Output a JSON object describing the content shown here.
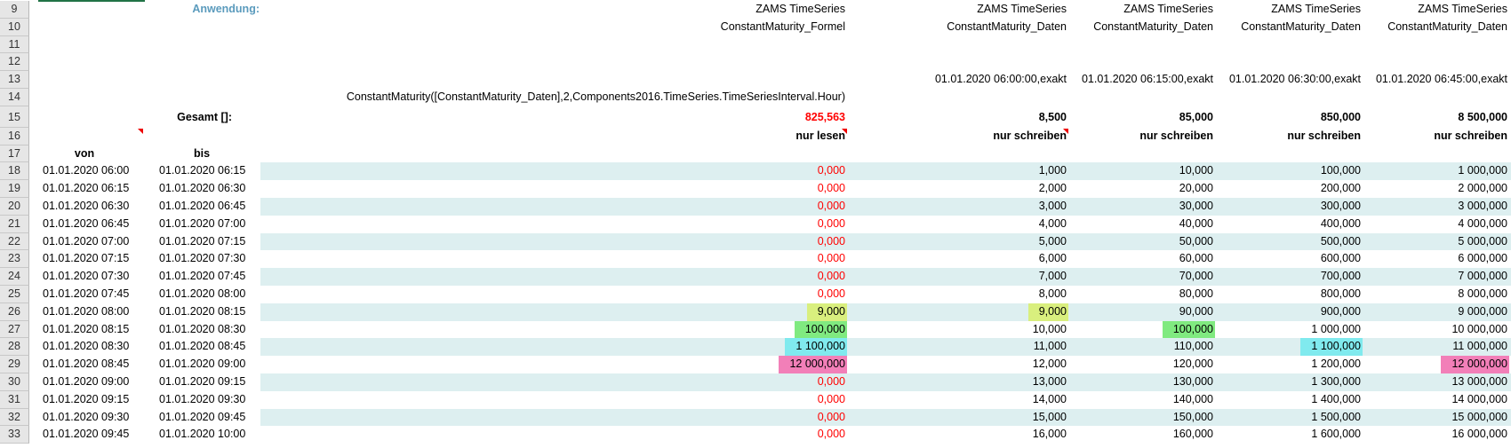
{
  "row_numbers": [
    9,
    10,
    11,
    12,
    13,
    14,
    15,
    16,
    17,
    18,
    19,
    20,
    21,
    22,
    23,
    24,
    25,
    26,
    27,
    28,
    29,
    30,
    31,
    32,
    33
  ],
  "header": {
    "application_label": "Anwendung:",
    "formula": "ConstantMaturity([ConstantMaturity_Daten],2,Components2016.TimeSeries.TimeSeriesInterval.Hour)",
    "total_label": "Gesamt []:",
    "from_label": "von",
    "to_label": "bis"
  },
  "columns": [
    {
      "source": "ZAMS TimeSeries",
      "name": "ConstantMaturity_Formel",
      "total": "825,563",
      "mode": "nur lesen",
      "value_color": "#ff0000"
    },
    {
      "source": "ZAMS TimeSeries",
      "name": "ConstantMaturity_Daten",
      "start": "01.01.2020 06:00:00,exakt",
      "total": "8,500",
      "mode": "nur schreiben"
    },
    {
      "source": "ZAMS TimeSeries",
      "name": "ConstantMaturity_Daten",
      "start": "01.01.2020 06:15:00,exakt",
      "total": "85,000",
      "mode": "nur schreiben"
    },
    {
      "source": "ZAMS TimeSeries",
      "name": "ConstantMaturity_Daten",
      "start": "01.01.2020 06:30:00,exakt",
      "total": "850,000",
      "mode": "nur schreiben"
    },
    {
      "source": "ZAMS TimeSeries",
      "name": "ConstantMaturity_Daten",
      "start": "01.01.2020 06:45:00,exakt",
      "total": "8 500,000",
      "mode": "nur schreiben"
    }
  ],
  "rows": [
    {
      "from": "01.01.2020 06:00",
      "to": "01.01.2020 06:15",
      "cells": [
        "0,000",
        "1,000",
        "10,000",
        "100,000",
        "1 000,000"
      ]
    },
    {
      "from": "01.01.2020 06:15",
      "to": "01.01.2020 06:30",
      "cells": [
        "0,000",
        "2,000",
        "20,000",
        "200,000",
        "2 000,000"
      ]
    },
    {
      "from": "01.01.2020 06:30",
      "to": "01.01.2020 06:45",
      "cells": [
        "0,000",
        "3,000",
        "30,000",
        "300,000",
        "3 000,000"
      ]
    },
    {
      "from": "01.01.2020 06:45",
      "to": "01.01.2020 07:00",
      "cells": [
        "0,000",
        "4,000",
        "40,000",
        "400,000",
        "4 000,000"
      ]
    },
    {
      "from": "01.01.2020 07:00",
      "to": "01.01.2020 07:15",
      "cells": [
        "0,000",
        "5,000",
        "50,000",
        "500,000",
        "5 000,000"
      ]
    },
    {
      "from": "01.01.2020 07:15",
      "to": "01.01.2020 07:30",
      "cells": [
        "0,000",
        "6,000",
        "60,000",
        "600,000",
        "6 000,000"
      ]
    },
    {
      "from": "01.01.2020 07:30",
      "to": "01.01.2020 07:45",
      "cells": [
        "0,000",
        "7,000",
        "70,000",
        "700,000",
        "7 000,000"
      ]
    },
    {
      "from": "01.01.2020 07:45",
      "to": "01.01.2020 08:00",
      "cells": [
        "0,000",
        "8,000",
        "80,000",
        "800,000",
        "8 000,000"
      ]
    },
    {
      "from": "01.01.2020 08:00",
      "to": "01.01.2020 08:15",
      "cells": [
        {
          "text": "9,000",
          "color": "#d9ef7e"
        },
        {
          "text": "9,000",
          "color": "#d9ef7e"
        },
        "90,000",
        "900,000",
        "9 000,000"
      ]
    },
    {
      "from": "01.01.2020 08:15",
      "to": "01.01.2020 08:30",
      "cells": [
        {
          "text": "100,000",
          "color": "#80ea80"
        },
        "10,000",
        {
          "text": "100,000",
          "color": "#80ea80"
        },
        "1 000,000",
        "10 000,000"
      ]
    },
    {
      "from": "01.01.2020 08:30",
      "to": "01.01.2020 08:45",
      "cells": [
        {
          "text": "1 100,000",
          "color": "#80eaee"
        },
        "11,000",
        "110,000",
        {
          "text": "1 100,000",
          "color": "#80eaee"
        },
        "11 000,000"
      ]
    },
    {
      "from": "01.01.2020 08:45",
      "to": "01.01.2020 09:00",
      "cells": [
        {
          "text": "12 000,000",
          "color": "#f27fb8"
        },
        "12,000",
        "120,000",
        "1 200,000",
        {
          "text": "12 000,000",
          "color": "#f27fb8"
        }
      ]
    },
    {
      "from": "01.01.2020 09:00",
      "to": "01.01.2020 09:15",
      "cells": [
        "0,000",
        "13,000",
        "130,000",
        "1 300,000",
        "13 000,000"
      ]
    },
    {
      "from": "01.01.2020 09:15",
      "to": "01.01.2020 09:30",
      "cells": [
        "0,000",
        "14,000",
        "140,000",
        "1 400,000",
        "14 000,000"
      ]
    },
    {
      "from": "01.01.2020 09:30",
      "to": "01.01.2020 09:45",
      "cells": [
        "0,000",
        "15,000",
        "150,000",
        "1 500,000",
        "15 000,000"
      ]
    },
    {
      "from": "01.01.2020 09:45",
      "to": "01.01.2020 10:00",
      "cells": [
        "0,000",
        "16,000",
        "160,000",
        "1 600,000",
        "16 000,000"
      ]
    }
  ]
}
